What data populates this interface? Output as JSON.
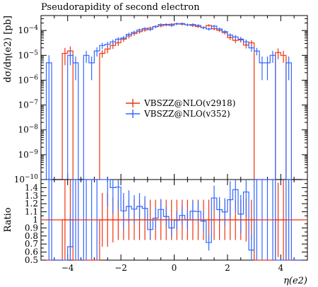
{
  "chart_data": {
    "type": "line",
    "title": "Pseudorapidity of second electron",
    "xlabel": "η(e2)",
    "ylabel": "dσ/dη(e2) [pb]",
    "ratio_ylabel": "Ratio",
    "xlim": [
      -5,
      5
    ],
    "ylim": [
      1e-10,
      0.0004
    ],
    "yscale": "log",
    "ratio_ylim": [
      0.5,
      1.5
    ],
    "legend_position": "center-right",
    "x_ticks": [
      "-4",
      "-2",
      "0",
      "2",
      "4"
    ],
    "y_ticks": [
      "10^-10",
      "10^-9",
      "10^-8",
      "10^-7",
      "10^-6",
      "10^-5",
      "10^-4"
    ],
    "ratio_ticks": [
      "0.5",
      "0.6",
      "0.7",
      "0.8",
      "0.9",
      "1",
      "1.1",
      "1.2",
      "1.3",
      "1.4"
    ],
    "bin_edges": [
      -4.8,
      -4.6,
      -4.4,
      -4.2,
      -4.0,
      -3.8,
      -3.6,
      -3.4,
      -3.2,
      -3.0,
      -2.8,
      -2.6,
      -2.4,
      -2.2,
      -2.0,
      -1.8,
      -1.6,
      -1.4,
      -1.2,
      -1.0,
      -0.8,
      -0.6,
      -0.4,
      -0.2,
      0.0,
      0.2,
      0.4,
      0.6,
      0.8,
      1.0,
      1.2,
      1.4,
      1.6,
      1.8,
      2.0,
      2.2,
      2.4,
      2.6,
      2.8,
      3.0,
      3.2,
      3.4,
      3.6,
      3.8,
      4.0,
      4.2,
      4.4,
      4.6,
      4.8
    ],
    "series": [
      {
        "name": "VBSZZ@NLO(v2918)",
        "color": "#ee3311",
        "values": [
          0.0,
          0.0,
          0.0,
          1.2e-05,
          1.5e-05,
          0.0,
          0.0,
          0.0,
          0.0,
          0.0,
          1.2e-05,
          1.8e-05,
          2.5e-05,
          3.2e-05,
          4.5e-05,
          6e-05,
          7.5e-05,
          9e-05,
          0.000105,
          0.000125,
          0.000142,
          0.000155,
          0.000168,
          0.000178,
          0.000186,
          0.00018,
          0.00017,
          0.000158,
          0.000145,
          0.000132,
          0.00016,
          0.000118,
          0.000102,
          8.2e-05,
          5.2e-05,
          4e-05,
          4.2e-05,
          2.6e-05,
          3.2e-05,
          0.0,
          0.0,
          0.0,
          0.0,
          1.3e-05,
          1e-05,
          0.0,
          0.0,
          0.0
        ],
        "errors": [
          0.0,
          0.0,
          0.0,
          8e-06,
          8e-06,
          0.0,
          0.0,
          0.0,
          0.0,
          0.0,
          4e-06,
          6e-06,
          7e-06,
          8e-06,
          1e-05,
          1.2e-05,
          1.4e-05,
          1.5e-05,
          1.6e-05,
          1.8e-05,
          1.9e-05,
          2e-05,
          2e-05,
          2.1e-05,
          2.1e-05,
          2.1e-05,
          2e-05,
          1.9e-05,
          1.8e-05,
          1.7e-05,
          1.8e-05,
          1.6e-05,
          1.5e-05,
          1.3e-05,
          1.1e-05,
          9e-06,
          9e-06,
          7e-06,
          8e-06,
          0.0,
          0.0,
          0.0,
          0.0,
          6e-06,
          5e-06,
          0.0,
          0.0,
          0.0
        ]
      },
      {
        "name": "VBSZZ@NLO(v352)",
        "color": "#3366ff",
        "values": [
          5e-06,
          0.0,
          0.0,
          0.0,
          1e-05,
          5e-06,
          0.0,
          1e-05,
          5e-06,
          1.5e-05,
          2.5e-05,
          2.8e-05,
          3.5e-05,
          4.5e-05,
          5e-05,
          7e-05,
          8.5e-05,
          0.000105,
          0.00012,
          0.00011,
          0.000145,
          0.000175,
          0.000175,
          0.00016,
          0.000185,
          0.00019,
          0.00017,
          0.000175,
          0.00016,
          0.00013,
          0.000115,
          0.00015,
          0.000115,
          9e-05,
          6.5e-05,
          5.5e-05,
          4.5e-05,
          3.5e-05,
          2e-05,
          1.5e-05,
          5e-06,
          5e-06,
          1e-05,
          0.0,
          0.0,
          5e-06,
          0.0,
          0.0
        ],
        "errors": [
          5e-06,
          0.0,
          0.0,
          0.0,
          6e-06,
          4e-06,
          0.0,
          5e-06,
          4e-06,
          6e-06,
          7e-06,
          7e-06,
          8e-06,
          9e-06,
          1e-05,
          1.2e-05,
          1.3e-05,
          1.5e-05,
          1.6e-05,
          1.5e-05,
          1.8e-05,
          2e-05,
          2e-05,
          1.9e-05,
          2.1e-05,
          2.1e-05,
          2e-05,
          2e-05,
          1.9e-05,
          1.7e-05,
          1.6e-05,
          1.8e-05,
          1.6e-05,
          1.4e-05,
          1.2e-05,
          1.1e-05,
          1e-05,
          8e-06,
          6e-06,
          5e-06,
          4e-06,
          4e-06,
          5e-06,
          0.0,
          0.0,
          4e-06,
          0.0,
          0.0
        ]
      }
    ]
  }
}
